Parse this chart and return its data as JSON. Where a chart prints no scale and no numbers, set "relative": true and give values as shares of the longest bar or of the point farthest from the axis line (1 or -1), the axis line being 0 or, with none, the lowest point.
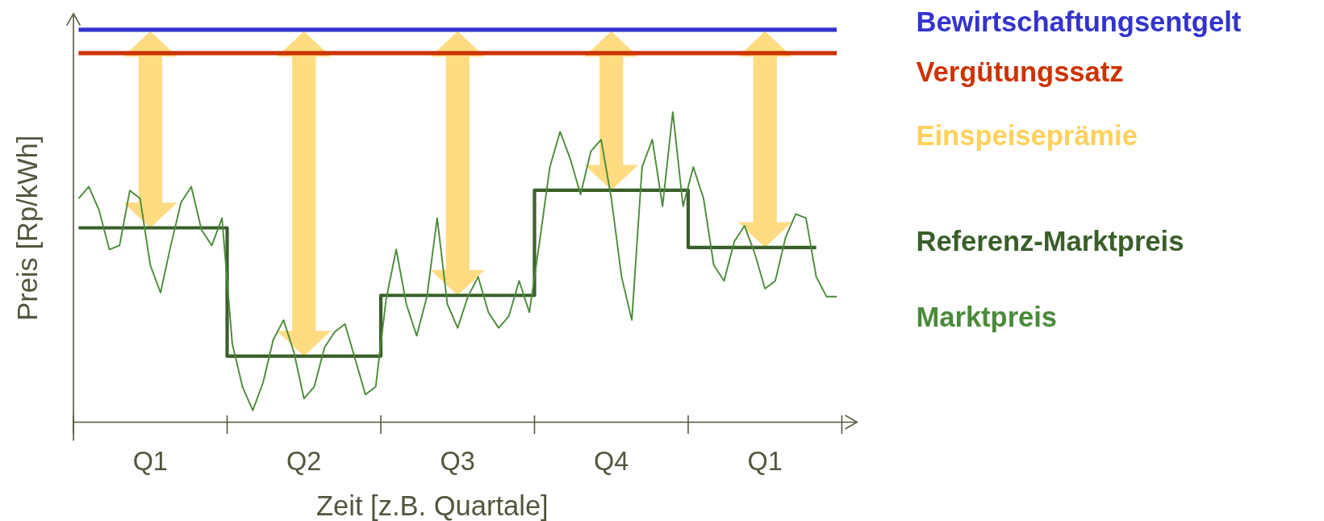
{
  "chart_data": {
    "type": "line",
    "relative": true,
    "xlabel": "Zeit [z.B. Quartale]",
    "ylabel": "Preis [Rp/kWh]",
    "categories": [
      null,
      null,
      null,
      null,
      null,
      null,
      null,
      "Q1",
      null,
      null,
      null,
      null,
      null,
      null,
      null,
      null,
      null,
      null,
      null,
      null,
      null,
      null,
      "Q2",
      null,
      null,
      null,
      null,
      null,
      null,
      null,
      null,
      null,
      null,
      null,
      null,
      null,
      null,
      "Q3",
      null,
      null,
      null,
      null,
      null,
      null,
      null,
      null,
      null,
      null,
      null,
      null,
      null,
      null,
      "Q4",
      null,
      null,
      null,
      null,
      null,
      null,
      null,
      null,
      null,
      null,
      null,
      null,
      null,
      null,
      "Q1",
      null,
      null,
      null,
      null,
      null,
      null,
      null
    ],
    "marker": "none",
    "annotations": [
      "Einspeiseprämie"
    ],
    "series": [
      {
        "name": "Bewirtschaftungsentgelt",
        "color": "#3333cc",
        "values": [
          1,
          1,
          1,
          1,
          1,
          1,
          1,
          1,
          1,
          1,
          1,
          1,
          1,
          1,
          1,
          1,
          1,
          1,
          1,
          1,
          1,
          1,
          1,
          1,
          1,
          1,
          1,
          1,
          1,
          1,
          1,
          1,
          1,
          1,
          1,
          1,
          1,
          1,
          1,
          1,
          1,
          1,
          1,
          1,
          1,
          1,
          1,
          1,
          1,
          1,
          1,
          1,
          1,
          1,
          1,
          1,
          1,
          1,
          1,
          1,
          1,
          1,
          1,
          1,
          1,
          1,
          1,
          1,
          1,
          1,
          1,
          1,
          1,
          1,
          1
        ]
      },
      {
        "name": "Vergütungssatz",
        "color": "#cc3300",
        "values": [
          0.94,
          0.94,
          0.94,
          0.94,
          0.94,
          0.94,
          0.94,
          0.94,
          0.94,
          0.94,
          0.94,
          0.94,
          0.94,
          0.94,
          0.94,
          0.94,
          0.94,
          0.94,
          0.94,
          0.94,
          0.94,
          0.94,
          0.94,
          0.94,
          0.94,
          0.94,
          0.94,
          0.94,
          0.94,
          0.94,
          0.94,
          0.94,
          0.94,
          0.94,
          0.94,
          0.94,
          0.94,
          0.94,
          0.94,
          0.94,
          0.94,
          0.94,
          0.94,
          0.94,
          0.94,
          0.94,
          0.94,
          0.94,
          0.94,
          0.94,
          0.94,
          0.94,
          0.94,
          0.94,
          0.94,
          0.94,
          0.94,
          0.94,
          0.94,
          0.94,
          0.94,
          0.94,
          0.94,
          0.94,
          0.94,
          0.94,
          0.94,
          0.94,
          0.94,
          0.94,
          0.94,
          0.94,
          0.94,
          0.94,
          0.94
        ]
      },
      {
        "name": "Referenz-Marktpreis",
        "type": "step",
        "color": "#3a5e2a",
        "values": [
          0.495,
          0.495,
          0.495,
          0.495,
          0.495,
          0.495,
          0.495,
          0.495,
          0.495,
          0.495,
          0.495,
          0.495,
          0.495,
          0.495,
          0.495,
          0.168,
          0.168,
          0.168,
          0.168,
          0.168,
          0.168,
          0.168,
          0.168,
          0.168,
          0.168,
          0.168,
          0.168,
          0.168,
          0.168,
          0.168,
          0.323,
          0.323,
          0.323,
          0.323,
          0.323,
          0.323,
          0.323,
          0.323,
          0.323,
          0.323,
          0.323,
          0.323,
          0.323,
          0.323,
          0.323,
          0.591,
          0.591,
          0.591,
          0.591,
          0.591,
          0.591,
          0.591,
          0.591,
          0.591,
          0.591,
          0.591,
          0.591,
          0.591,
          0.591,
          0.591,
          0.445,
          0.445,
          0.445,
          0.445,
          0.445,
          0.445,
          0.445,
          0.445,
          0.445,
          0.445,
          0.445,
          0.445,
          0.445,
          null,
          null
        ]
      },
      {
        "name": "Marktpreis",
        "color": "#4a8a3a",
        "values": [
          0.57,
          0.6,
          0.54,
          0.44,
          0.45,
          0.59,
          0.57,
          0.4,
          0.33,
          0.45,
          0.56,
          0.6,
          0.49,
          0.45,
          0.52,
          0.2,
          0.09,
          0.03,
          0.1,
          0.21,
          0.26,
          0.18,
          0.06,
          0.09,
          0.19,
          0.23,
          0.25,
          0.16,
          0.07,
          0.09,
          0.31,
          0.44,
          0.3,
          0.22,
          0.32,
          0.52,
          0.3,
          0.24,
          0.32,
          0.37,
          0.28,
          0.24,
          0.27,
          0.36,
          0.28,
          0.46,
          0.65,
          0.74,
          0.67,
          0.58,
          0.69,
          0.72,
          0.57,
          0.37,
          0.26,
          0.65,
          0.72,
          0.55,
          0.79,
          0.55,
          0.65,
          0.57,
          0.4,
          0.36,
          0.46,
          0.5,
          0.43,
          0.34,
          0.36,
          0.47,
          0.53,
          0.52,
          0.37,
          0.32,
          0.32
        ]
      }
    ]
  }
}
